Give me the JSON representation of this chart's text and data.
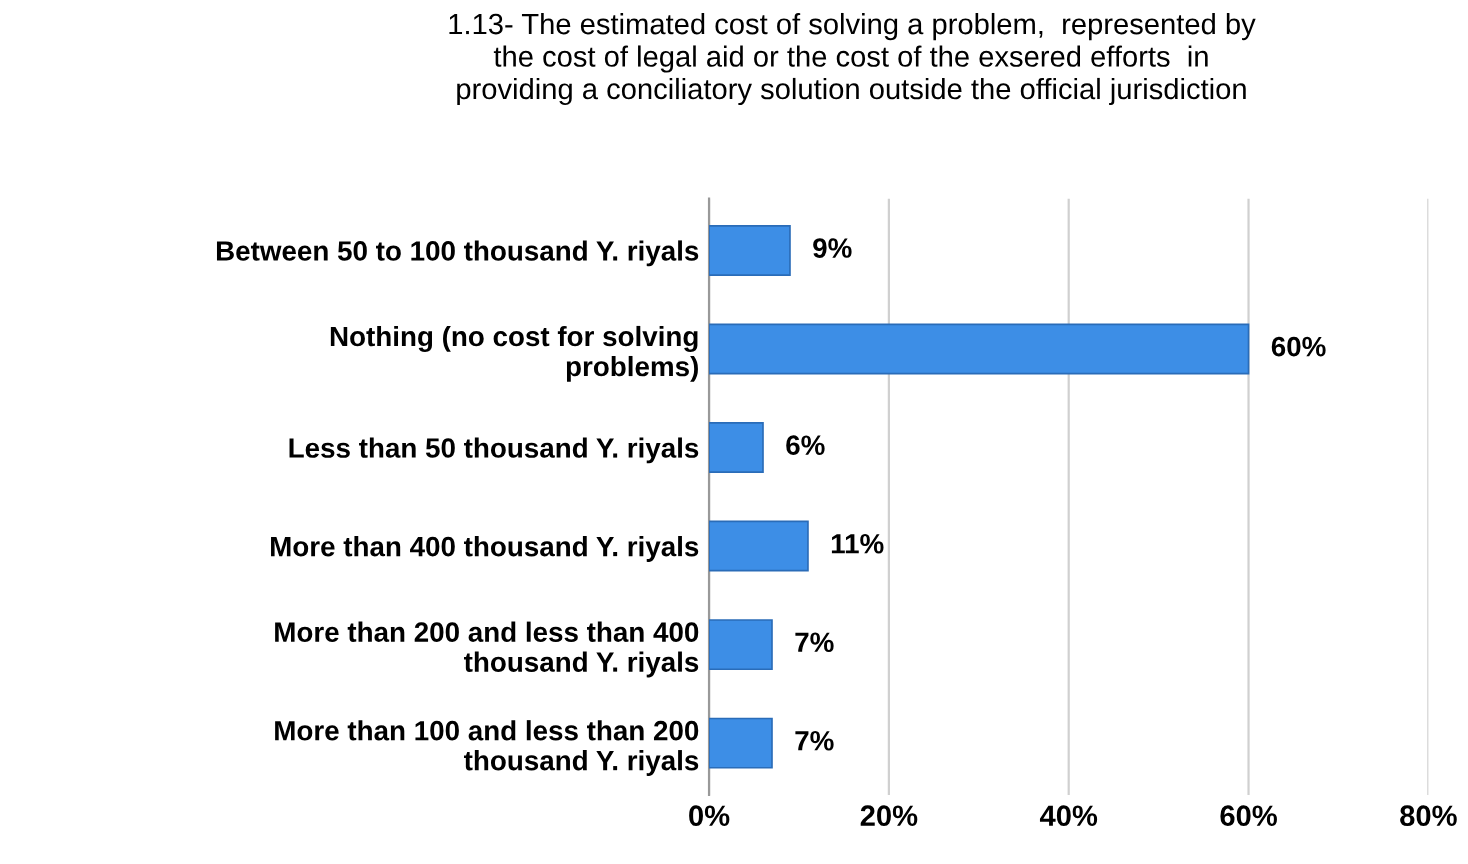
{
  "chart_data": {
    "type": "bar",
    "orientation": "horizontal",
    "title": "1.13- The estimated cost of solving a problem,  represented by\nthe cost of legal aid or the cost of the exsered efforts  in\nproviding a conciliatory solution outside the official jurisdiction",
    "categories": [
      "Between 50 to 100 thousand Y. riyals",
      "Nothing (no cost for solving\nproblems)",
      "Less than 50 thousand Y. riyals",
      "More than 400 thousand Y. riyals",
      "More than 200 and less than 400\nthousand Y. riyals",
      "More than 100 and less than 200\nthousand Y. riyals"
    ],
    "values": [
      9,
      60,
      6,
      11,
      7,
      7
    ],
    "value_labels": [
      "9%",
      "60%",
      "6%",
      "11%",
      "7%",
      "7%"
    ],
    "color": "#3d8ee6",
    "xlim": [
      0,
      80
    ],
    "xticks": [
      {
        "value": 0,
        "label": "0%"
      },
      {
        "value": 20,
        "label": "20%"
      },
      {
        "value": 40,
        "label": "40%"
      },
      {
        "value": 60,
        "label": "60%"
      },
      {
        "value": 80,
        "label": "80%"
      }
    ],
    "grid": "x"
  }
}
